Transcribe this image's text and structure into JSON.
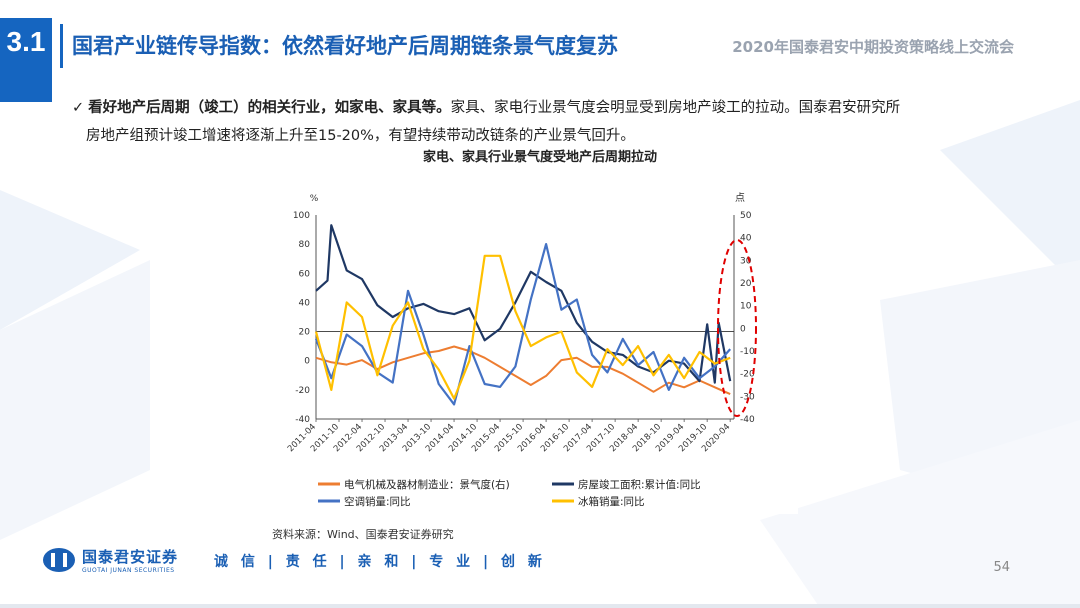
{
  "header": {
    "section_number": "3.1",
    "title": "国君产业链传导指数：依然看好地产后周期链条景气度复苏",
    "event": "2020年国泰君安中期投资策略线上交流会"
  },
  "bullet": {
    "check": "✓",
    "bold_text": "看好地产后周期（竣工）的相关行业，如家电、家具等。",
    "text_rest": "家具、家电行业景气度会明显受到房地产竣工的拉动。国泰君安研究所",
    "line2": "房地产组预计竣工增速将逐渐上升至15-20%，有望持续带动改链条的产业景气回升。"
  },
  "chart_data": {
    "type": "line",
    "title": "家电、家具行业景气度受地产后周期拉动",
    "y_left_unit": "%",
    "y_right_unit": "点",
    "y_left_range": [
      -40,
      100
    ],
    "y_left_ticks": [
      100,
      80,
      60,
      40,
      20,
      0,
      -20,
      -40
    ],
    "y_right_range": [
      -40,
      50
    ],
    "y_right_ticks": [
      50,
      40,
      30,
      20,
      10,
      0,
      -10,
      -20,
      -30,
      -40
    ],
    "x_tick_labels": [
      "2011-04",
      "2011-10",
      "2012-04",
      "2012-10",
      "2013-04",
      "2013-10",
      "2014-04",
      "2014-10",
      "2015-04",
      "2015-10",
      "2016-04",
      "2016-10",
      "2017-04",
      "2017-10",
      "2018-04",
      "2018-10",
      "2019-04",
      "2019-10",
      "2020-04"
    ],
    "x_start": "2011-04",
    "x_end": "2020-05",
    "series": [
      {
        "name": "电气机械及器材制造业：景气度(右)",
        "axis": "right",
        "color": "#ed7d31",
        "x": [
          "2011-04",
          "2011-08",
          "2011-12",
          "2012-04",
          "2012-08",
          "2012-12",
          "2013-04",
          "2013-08",
          "2013-12",
          "2014-04",
          "2014-08",
          "2014-12",
          "2015-04",
          "2015-08",
          "2015-12",
          "2016-04",
          "2016-08",
          "2016-12",
          "2017-04",
          "2017-08",
          "2017-12",
          "2018-04",
          "2018-08",
          "2018-12",
          "2019-04",
          "2019-08",
          "2019-12",
          "2020-04"
        ],
        "values": [
          -13,
          -15,
          -16,
          -14,
          -18,
          -15,
          -13,
          -11,
          -10,
          -8,
          -10,
          -13,
          -17,
          -21,
          -25,
          -21,
          -14,
          -13,
          -17,
          -17,
          -20,
          -24,
          -28,
          -24,
          -26,
          -23,
          -26,
          -29
        ]
      },
      {
        "name": "房屋竣工面积:累计值:同比",
        "axis": "left",
        "color": "#1f3864",
        "x": [
          "2011-04",
          "2011-07",
          "2011-08",
          "2011-12",
          "2012-04",
          "2012-08",
          "2012-12",
          "2013-04",
          "2013-08",
          "2013-12",
          "2014-04",
          "2014-08",
          "2014-12",
          "2015-04",
          "2015-08",
          "2015-12",
          "2016-04",
          "2016-08",
          "2016-12",
          "2017-04",
          "2017-08",
          "2017-12",
          "2018-04",
          "2018-08",
          "2018-12",
          "2019-04",
          "2019-08",
          "2019-10",
          "2019-12",
          "2020-01",
          "2020-04"
        ],
        "values": [
          48,
          55,
          93,
          62,
          56,
          38,
          30,
          36,
          39,
          34,
          32,
          36,
          14,
          22,
          40,
          61,
          54,
          48,
          26,
          13,
          6,
          4,
          -4,
          -8,
          0,
          -2,
          -14,
          25,
          -15,
          26,
          -14
        ]
      },
      {
        "name": "空调销量:同比",
        "axis": "left",
        "color": "#4472c4",
        "x": [
          "2011-04",
          "2011-08",
          "2011-12",
          "2012-04",
          "2012-08",
          "2012-12",
          "2013-04",
          "2013-08",
          "2013-12",
          "2014-04",
          "2014-08",
          "2014-12",
          "2015-04",
          "2015-08",
          "2015-12",
          "2016-04",
          "2016-08",
          "2016-12",
          "2017-04",
          "2017-08",
          "2017-12",
          "2018-04",
          "2018-08",
          "2018-12",
          "2019-04",
          "2019-08",
          "2019-12",
          "2020-04"
        ],
        "values": [
          15,
          -12,
          18,
          10,
          -8,
          -15,
          48,
          18,
          -16,
          -30,
          10,
          -16,
          -18,
          -4,
          42,
          80,
          35,
          42,
          4,
          -8,
          15,
          -3,
          6,
          -20,
          2,
          -12,
          -4,
          8
        ]
      },
      {
        "name": "冰箱销量:同比",
        "axis": "left",
        "color": "#ffc000",
        "x": [
          "2011-04",
          "2011-08",
          "2011-12",
          "2012-04",
          "2012-08",
          "2012-12",
          "2013-04",
          "2013-08",
          "2013-12",
          "2014-04",
          "2014-08",
          "2014-12",
          "2015-04",
          "2015-08",
          "2015-12",
          "2016-04",
          "2016-08",
          "2016-12",
          "2017-04",
          "2017-08",
          "2017-12",
          "2018-04",
          "2018-08",
          "2018-12",
          "2019-04",
          "2019-08",
          "2019-12",
          "2020-04"
        ],
        "values": [
          20,
          -20,
          40,
          30,
          -10,
          24,
          40,
          8,
          -6,
          -26,
          0,
          72,
          72,
          34,
          10,
          16,
          20,
          -8,
          -18,
          8,
          -3,
          10,
          -10,
          4,
          -12,
          6,
          -2,
          2
        ]
      }
    ],
    "annotation": "red-dashed-ellipse-recent-period"
  },
  "source": "资料来源：Wind、国泰君安证券研究",
  "footer": {
    "logo_cn": "国泰君安证券",
    "logo_en": "GUOTAI JUNAN SECURITIES",
    "slogan": "诚 信 | 责 任 | 亲 和 | 专 业 | 创 新",
    "page_number": "54"
  }
}
